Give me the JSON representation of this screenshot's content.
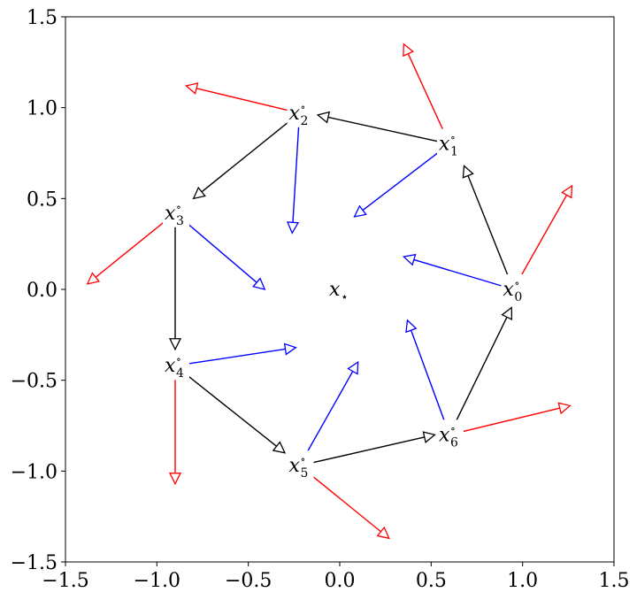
{
  "chart_data": {
    "type": "vector-field",
    "title": "",
    "xlabel": "",
    "ylabel": "",
    "xlim": [
      -1.5,
      1.5
    ],
    "ylim": [
      -1.5,
      1.5
    ],
    "xticks": [
      -1.5,
      -1.0,
      -0.5,
      0.0,
      0.5,
      1.0,
      1.5
    ],
    "yticks": [
      -1.5,
      -1.0,
      -0.5,
      0.0,
      0.5,
      1.0,
      1.5
    ],
    "xtick_labels": [
      "−1.5",
      "−1.0",
      "−0.5",
      "0.0",
      "0.5",
      "1.0",
      "1.5"
    ],
    "ytick_labels": [
      "−1.5",
      "−1.0",
      "−0.5",
      "0.0",
      "0.5",
      "1.0",
      "1.5"
    ],
    "grid": false,
    "center": {
      "label": "x",
      "sub": "⋆",
      "x": 0.0,
      "y": 0.0
    },
    "points": [
      {
        "label": "x",
        "sub": "0",
        "sup": "∘",
        "x": 0.95,
        "y": 0.0
      },
      {
        "label": "x",
        "sub": "1",
        "sup": "∘",
        "x": 0.6,
        "y": 0.8
      },
      {
        "label": "x",
        "sub": "2",
        "sup": "∘",
        "x": -0.22,
        "y": 0.97
      },
      {
        "label": "x",
        "sub": "3",
        "sup": "∘",
        "x": -0.9,
        "y": 0.42
      },
      {
        "label": "x",
        "sub": "4",
        "sup": "∘",
        "x": -0.9,
        "y": -0.42
      },
      {
        "label": "x",
        "sub": "5",
        "sup": "∘",
        "x": -0.22,
        "y": -0.97
      },
      {
        "label": "x",
        "sub": "6",
        "sup": "∘",
        "x": 0.6,
        "y": -0.8
      }
    ],
    "series": [
      {
        "color": "#000000",
        "arrows": [
          {
            "from": [
              0.95,
              0.0
            ],
            "to": [
              0.68,
              0.68
            ]
          },
          {
            "from": [
              0.6,
              0.8
            ],
            "to": [
              -0.12,
              0.96
            ]
          },
          {
            "from": [
              -0.22,
              0.97
            ],
            "to": [
              -0.8,
              0.5
            ]
          },
          {
            "from": [
              -0.9,
              0.42
            ],
            "to": [
              -0.9,
              -0.33
            ]
          },
          {
            "from": [
              -0.9,
              -0.42
            ],
            "to": [
              -0.3,
              -0.9
            ]
          },
          {
            "from": [
              -0.22,
              -0.97
            ],
            "to": [
              0.52,
              -0.8
            ]
          },
          {
            "from": [
              0.6,
              -0.8
            ],
            "to": [
              0.94,
              -0.1
            ]
          }
        ]
      },
      {
        "color": "#0000ff",
        "arrows": [
          {
            "from": [
              0.95,
              0.0
            ],
            "to": [
              0.35,
              0.18
            ]
          },
          {
            "from": [
              0.6,
              0.8
            ],
            "to": [
              0.08,
              0.4
            ]
          },
          {
            "from": [
              -0.22,
              0.97
            ],
            "to": [
              -0.26,
              0.31
            ]
          },
          {
            "from": [
              -0.9,
              0.42
            ],
            "to": [
              -0.41,
              0.0
            ]
          },
          {
            "from": [
              -0.9,
              -0.42
            ],
            "to": [
              -0.24,
              -0.32
            ]
          },
          {
            "from": [
              -0.22,
              -0.97
            ],
            "to": [
              0.1,
              -0.4
            ]
          },
          {
            "from": [
              0.6,
              -0.8
            ],
            "to": [
              0.37,
              -0.17
            ]
          }
        ]
      },
      {
        "color": "#ff0000",
        "arrows": [
          {
            "from": [
              0.95,
              0.0
            ],
            "to": [
              1.27,
              0.57
            ]
          },
          {
            "from": [
              0.6,
              0.8
            ],
            "to": [
              0.35,
              1.35
            ]
          },
          {
            "from": [
              -0.22,
              0.97
            ],
            "to": [
              -0.84,
              1.12
            ]
          },
          {
            "from": [
              -0.9,
              0.42
            ],
            "to": [
              -1.38,
              0.03
            ]
          },
          {
            "from": [
              -0.9,
              -0.42
            ],
            "to": [
              -0.9,
              -1.07
            ]
          },
          {
            "from": [
              -0.22,
              -0.97
            ],
            "to": [
              0.27,
              -1.37
            ]
          },
          {
            "from": [
              0.6,
              -0.8
            ],
            "to": [
              1.26,
              -0.64
            ]
          }
        ]
      }
    ]
  }
}
